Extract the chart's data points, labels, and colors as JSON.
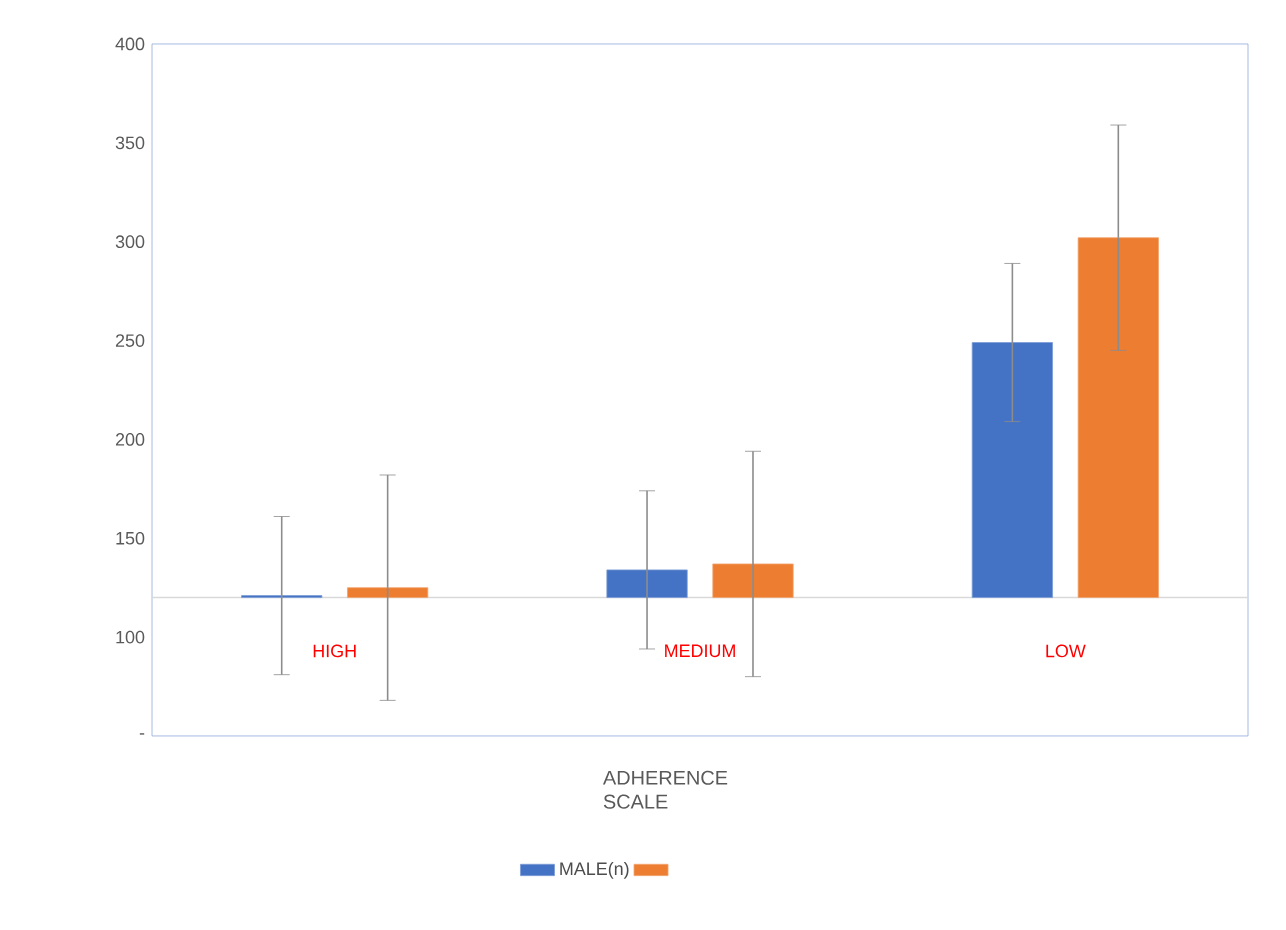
{
  "chart_data": {
    "type": "bar",
    "xlabel": "ADHERENCE SCALE",
    "categories": [
      "HIGH",
      "MEDIUM",
      "LOW"
    ],
    "series": [
      {
        "name": "MALE(n)",
        "color": "#4472c4",
        "values": [
          1,
          14,
          129
        ],
        "base": [
          120,
          120,
          120
        ],
        "errors": [
          40,
          40,
          40
        ]
      },
      {
        "color": "#ed7d31",
        "values": [
          5,
          17,
          182
        ],
        "base": [
          120,
          120,
          120
        ],
        "errors": [
          57,
          57,
          57
        ]
      }
    ],
    "ylim": [
      50,
      400
    ],
    "yticks": [
      {
        "value": 50,
        "label": "-"
      },
      100,
      150,
      200,
      250,
      300,
      350,
      400
    ],
    "ref_lines": [
      {
        "axis": "y",
        "value": 120,
        "color": "#d9d9d9"
      }
    ],
    "grid": false,
    "legend": "bottom"
  }
}
